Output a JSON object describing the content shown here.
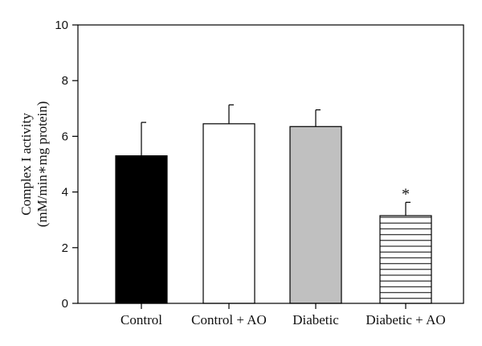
{
  "chart_data": {
    "type": "bar",
    "title": "",
    "xlabel": "",
    "ylabel_line1": "Complex I activity",
    "ylabel_line2": "(mM/min∗mg protein)",
    "ylim": [
      0,
      10
    ],
    "yticks": [
      0,
      2,
      4,
      6,
      8,
      10
    ],
    "grid": false,
    "categories": [
      "Control",
      "Control + AO",
      "Diabetic",
      "Diabetic + AO"
    ],
    "values": [
      5.3,
      6.45,
      6.35,
      3.15
    ],
    "errors": [
      1.2,
      0.68,
      0.6,
      0.48
    ],
    "fills": [
      "#000000",
      "#ffffff",
      "#c0c0c0",
      "hatch-horizontal"
    ],
    "annotations": [
      {
        "category": "Diabetic + AO",
        "text": "*"
      }
    ]
  }
}
